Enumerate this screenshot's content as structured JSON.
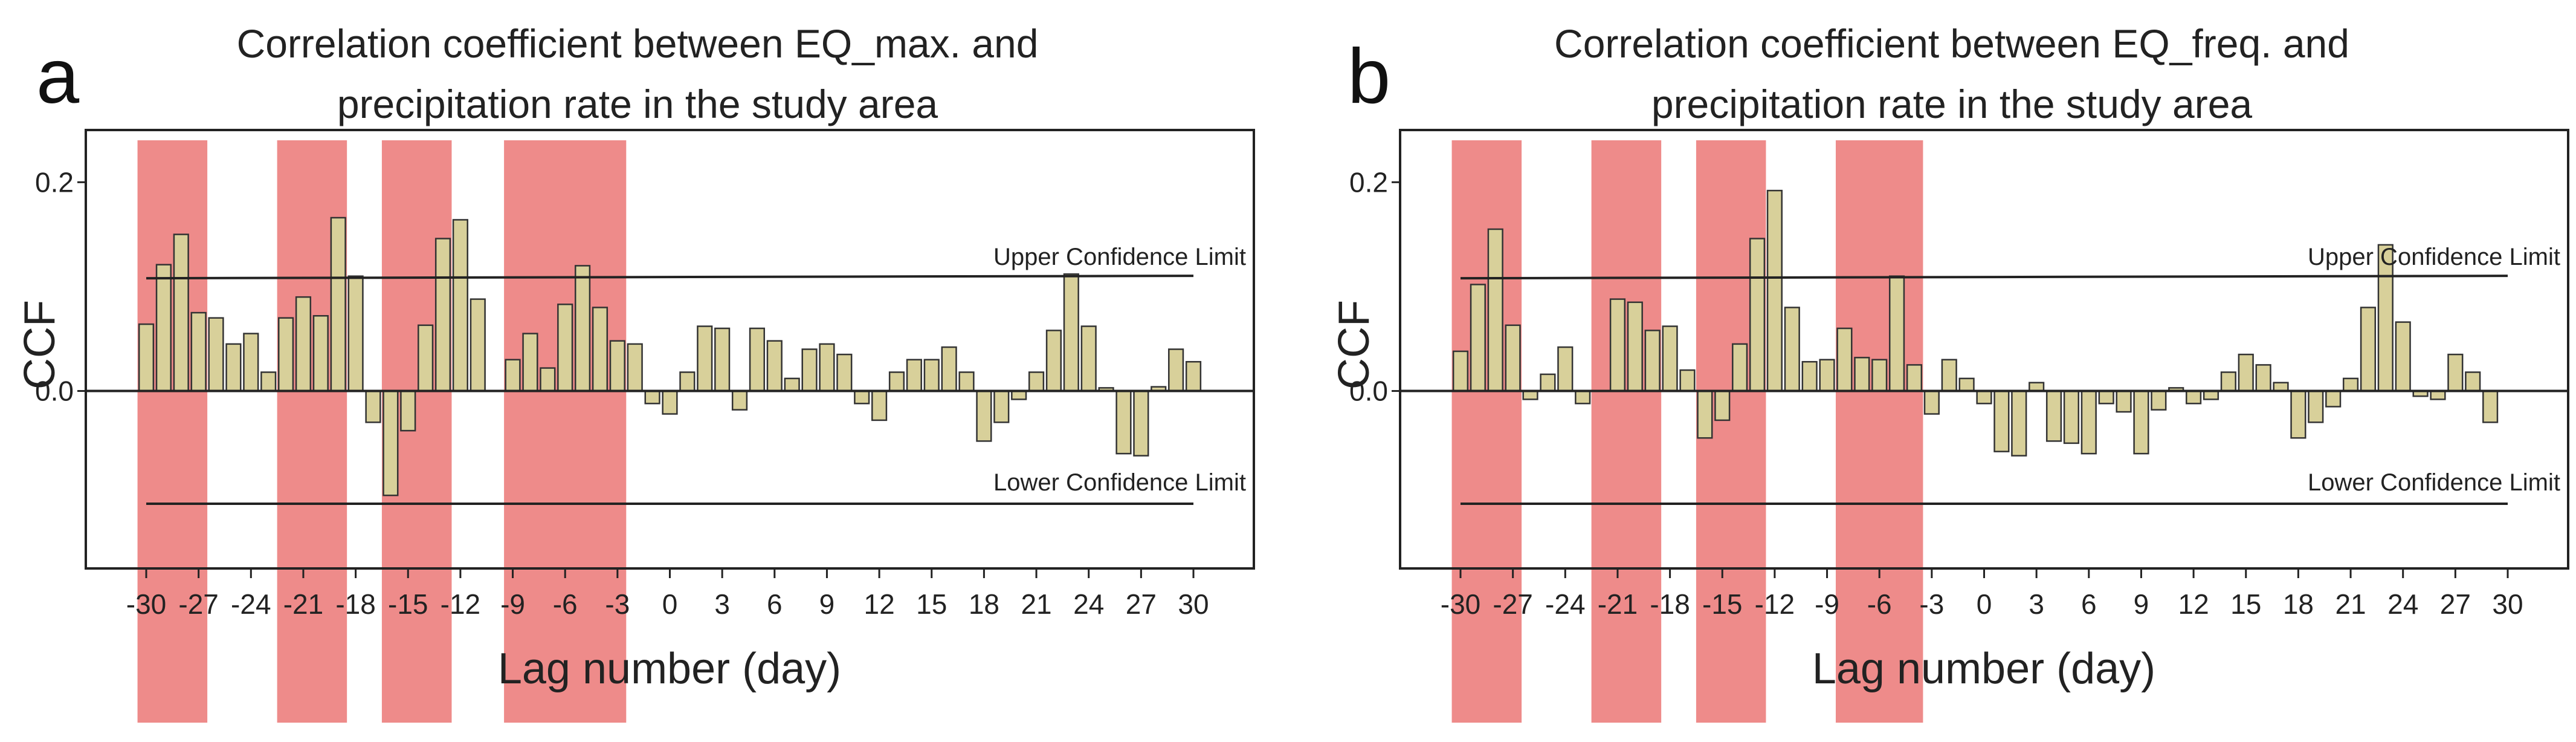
{
  "chart_data": [
    {
      "type": "bar",
      "panel_letter": "a",
      "title_lines": [
        "Correlation coefficient between EQ_max. and",
        "precipitation rate in the study area"
      ],
      "xlabel": "Lag number (day)",
      "ylabel": "CCF",
      "ylim": [
        -0.17,
        0.25
      ],
      "yticks": [
        "0.0",
        "0.2"
      ],
      "ytick_values": [
        0.0,
        0.2
      ],
      "xticks": [
        "-30",
        "-27",
        "-24",
        "-21",
        "-18",
        "-15",
        "-12",
        "-9",
        "-6",
        "-3",
        "0",
        "3",
        "6",
        "9",
        "12",
        "15",
        "18",
        "21",
        "24",
        "27",
        "30"
      ],
      "xtick_values": [
        -30,
        -27,
        -24,
        -21,
        -18,
        -15,
        -12,
        -9,
        -6,
        -3,
        0,
        3,
        6,
        9,
        12,
        15,
        18,
        21,
        24,
        27,
        30
      ],
      "lags": [
        -30,
        -29,
        -28,
        -27,
        -26,
        -25,
        -24,
        -23,
        -22,
        -21,
        -20,
        -19,
        -18,
        -17,
        -16,
        -15,
        -14,
        -13,
        -12,
        -11,
        -10,
        -9,
        -8,
        -7,
        -6,
        -5,
        -4,
        -3,
        -2,
        -1,
        0,
        1,
        2,
        3,
        4,
        5,
        6,
        7,
        8,
        9,
        10,
        11,
        12,
        13,
        14,
        15,
        16,
        17,
        18,
        19,
        20,
        21,
        22,
        23,
        24,
        25,
        26,
        27,
        28,
        29,
        30
      ],
      "values": [
        0.064,
        0.121,
        0.15,
        0.075,
        0.07,
        0.045,
        0.055,
        0.018,
        0.07,
        0.09,
        0.072,
        0.166,
        0.11,
        -0.03,
        -0.1,
        -0.038,
        0.063,
        0.146,
        0.164,
        0.088,
        0.0,
        0.03,
        0.055,
        0.022,
        0.083,
        0.12,
        0.08,
        0.048,
        0.045,
        -0.012,
        -0.022,
        0.018,
        0.062,
        0.06,
        -0.018,
        0.06,
        0.048,
        0.012,
        0.04,
        0.045,
        0.035,
        -0.012,
        -0.028,
        0.018,
        0.03,
        0.03,
        0.042,
        0.018,
        -0.048,
        -0.03,
        -0.008,
        0.018,
        0.058,
        0.112,
        0.062,
        0.003,
        -0.06,
        -0.062,
        0.004,
        0.04,
        0.028
      ],
      "upper_confidence": 0.108,
      "lower_confidence": -0.108,
      "upper_label": "Upper Confidence Limit",
      "lower_label": "Lower Confidence Limit",
      "highlight_lag_ranges": [
        [
          -30.5,
          -26.5
        ],
        [
          -22.5,
          -18.5
        ],
        [
          -16.5,
          -12.5
        ],
        [
          -9.5,
          -2.5
        ]
      ],
      "bar_color": "#d8d09a",
      "highlight_color": "#ee8b8a"
    },
    {
      "type": "bar",
      "panel_letter": "b",
      "title_lines": [
        "Correlation coefficient between EQ_freq. and",
        "precipitation rate in the study area"
      ],
      "xlabel": "Lag number (day)",
      "ylabel": "CCF",
      "ylim": [
        -0.17,
        0.25
      ],
      "yticks": [
        "0.0",
        "0.2"
      ],
      "ytick_values": [
        0.0,
        0.2
      ],
      "xticks": [
        "-30",
        "-27",
        "-24",
        "-21",
        "-18",
        "-15",
        "-12",
        "-9",
        "-6",
        "-3",
        "0",
        "3",
        "6",
        "9",
        "12",
        "15",
        "18",
        "21",
        "24",
        "27",
        "30"
      ],
      "xtick_values": [
        -30,
        -27,
        -24,
        -21,
        -18,
        -15,
        -12,
        -9,
        -6,
        -3,
        0,
        3,
        6,
        9,
        12,
        15,
        18,
        21,
        24,
        27,
        30
      ],
      "lags": [
        -30,
        -29,
        -28,
        -27,
        -26,
        -25,
        -24,
        -23,
        -22,
        -21,
        -20,
        -19,
        -18,
        -17,
        -16,
        -15,
        -14,
        -13,
        -12,
        -11,
        -10,
        -9,
        -8,
        -7,
        -6,
        -5,
        -4,
        -3,
        -2,
        -1,
        0,
        1,
        2,
        3,
        4,
        5,
        6,
        7,
        8,
        9,
        10,
        11,
        12,
        13,
        14,
        15,
        16,
        17,
        18,
        19,
        20,
        21,
        22,
        23,
        24,
        25,
        26,
        27,
        28,
        29,
        30
      ],
      "values": [
        0.038,
        0.102,
        0.155,
        0.063,
        -0.008,
        0.016,
        0.042,
        -0.012,
        0.0,
        0.088,
        0.085,
        0.058,
        0.062,
        0.02,
        -0.045,
        -0.028,
        0.045,
        0.146,
        0.192,
        0.08,
        0.028,
        0.03,
        0.06,
        0.032,
        0.03,
        0.11,
        0.025,
        -0.022,
        0.03,
        0.012,
        -0.012,
        -0.058,
        -0.062,
        0.008,
        -0.048,
        -0.05,
        -0.06,
        -0.012,
        -0.02,
        -0.06,
        -0.018,
        0.003,
        -0.012,
        -0.008,
        0.018,
        0.035,
        0.025,
        0.008,
        -0.045,
        -0.03,
        -0.015,
        0.012,
        0.08,
        0.14,
        0.066,
        -0.005,
        -0.008,
        0.035,
        0.018,
        -0.03,
        0.0
      ],
      "upper_confidence": 0.108,
      "lower_confidence": -0.108,
      "upper_label": "Upper Confidence Limit",
      "lower_label": "Lower Confidence Limit",
      "highlight_lag_ranges": [
        [
          -30.5,
          -26.5
        ],
        [
          -22.5,
          -18.5
        ],
        [
          -16.5,
          -12.5
        ],
        [
          -8.5,
          -3.5
        ]
      ],
      "bar_color": "#d8d09a",
      "highlight_color": "#ee8b8a"
    }
  ]
}
